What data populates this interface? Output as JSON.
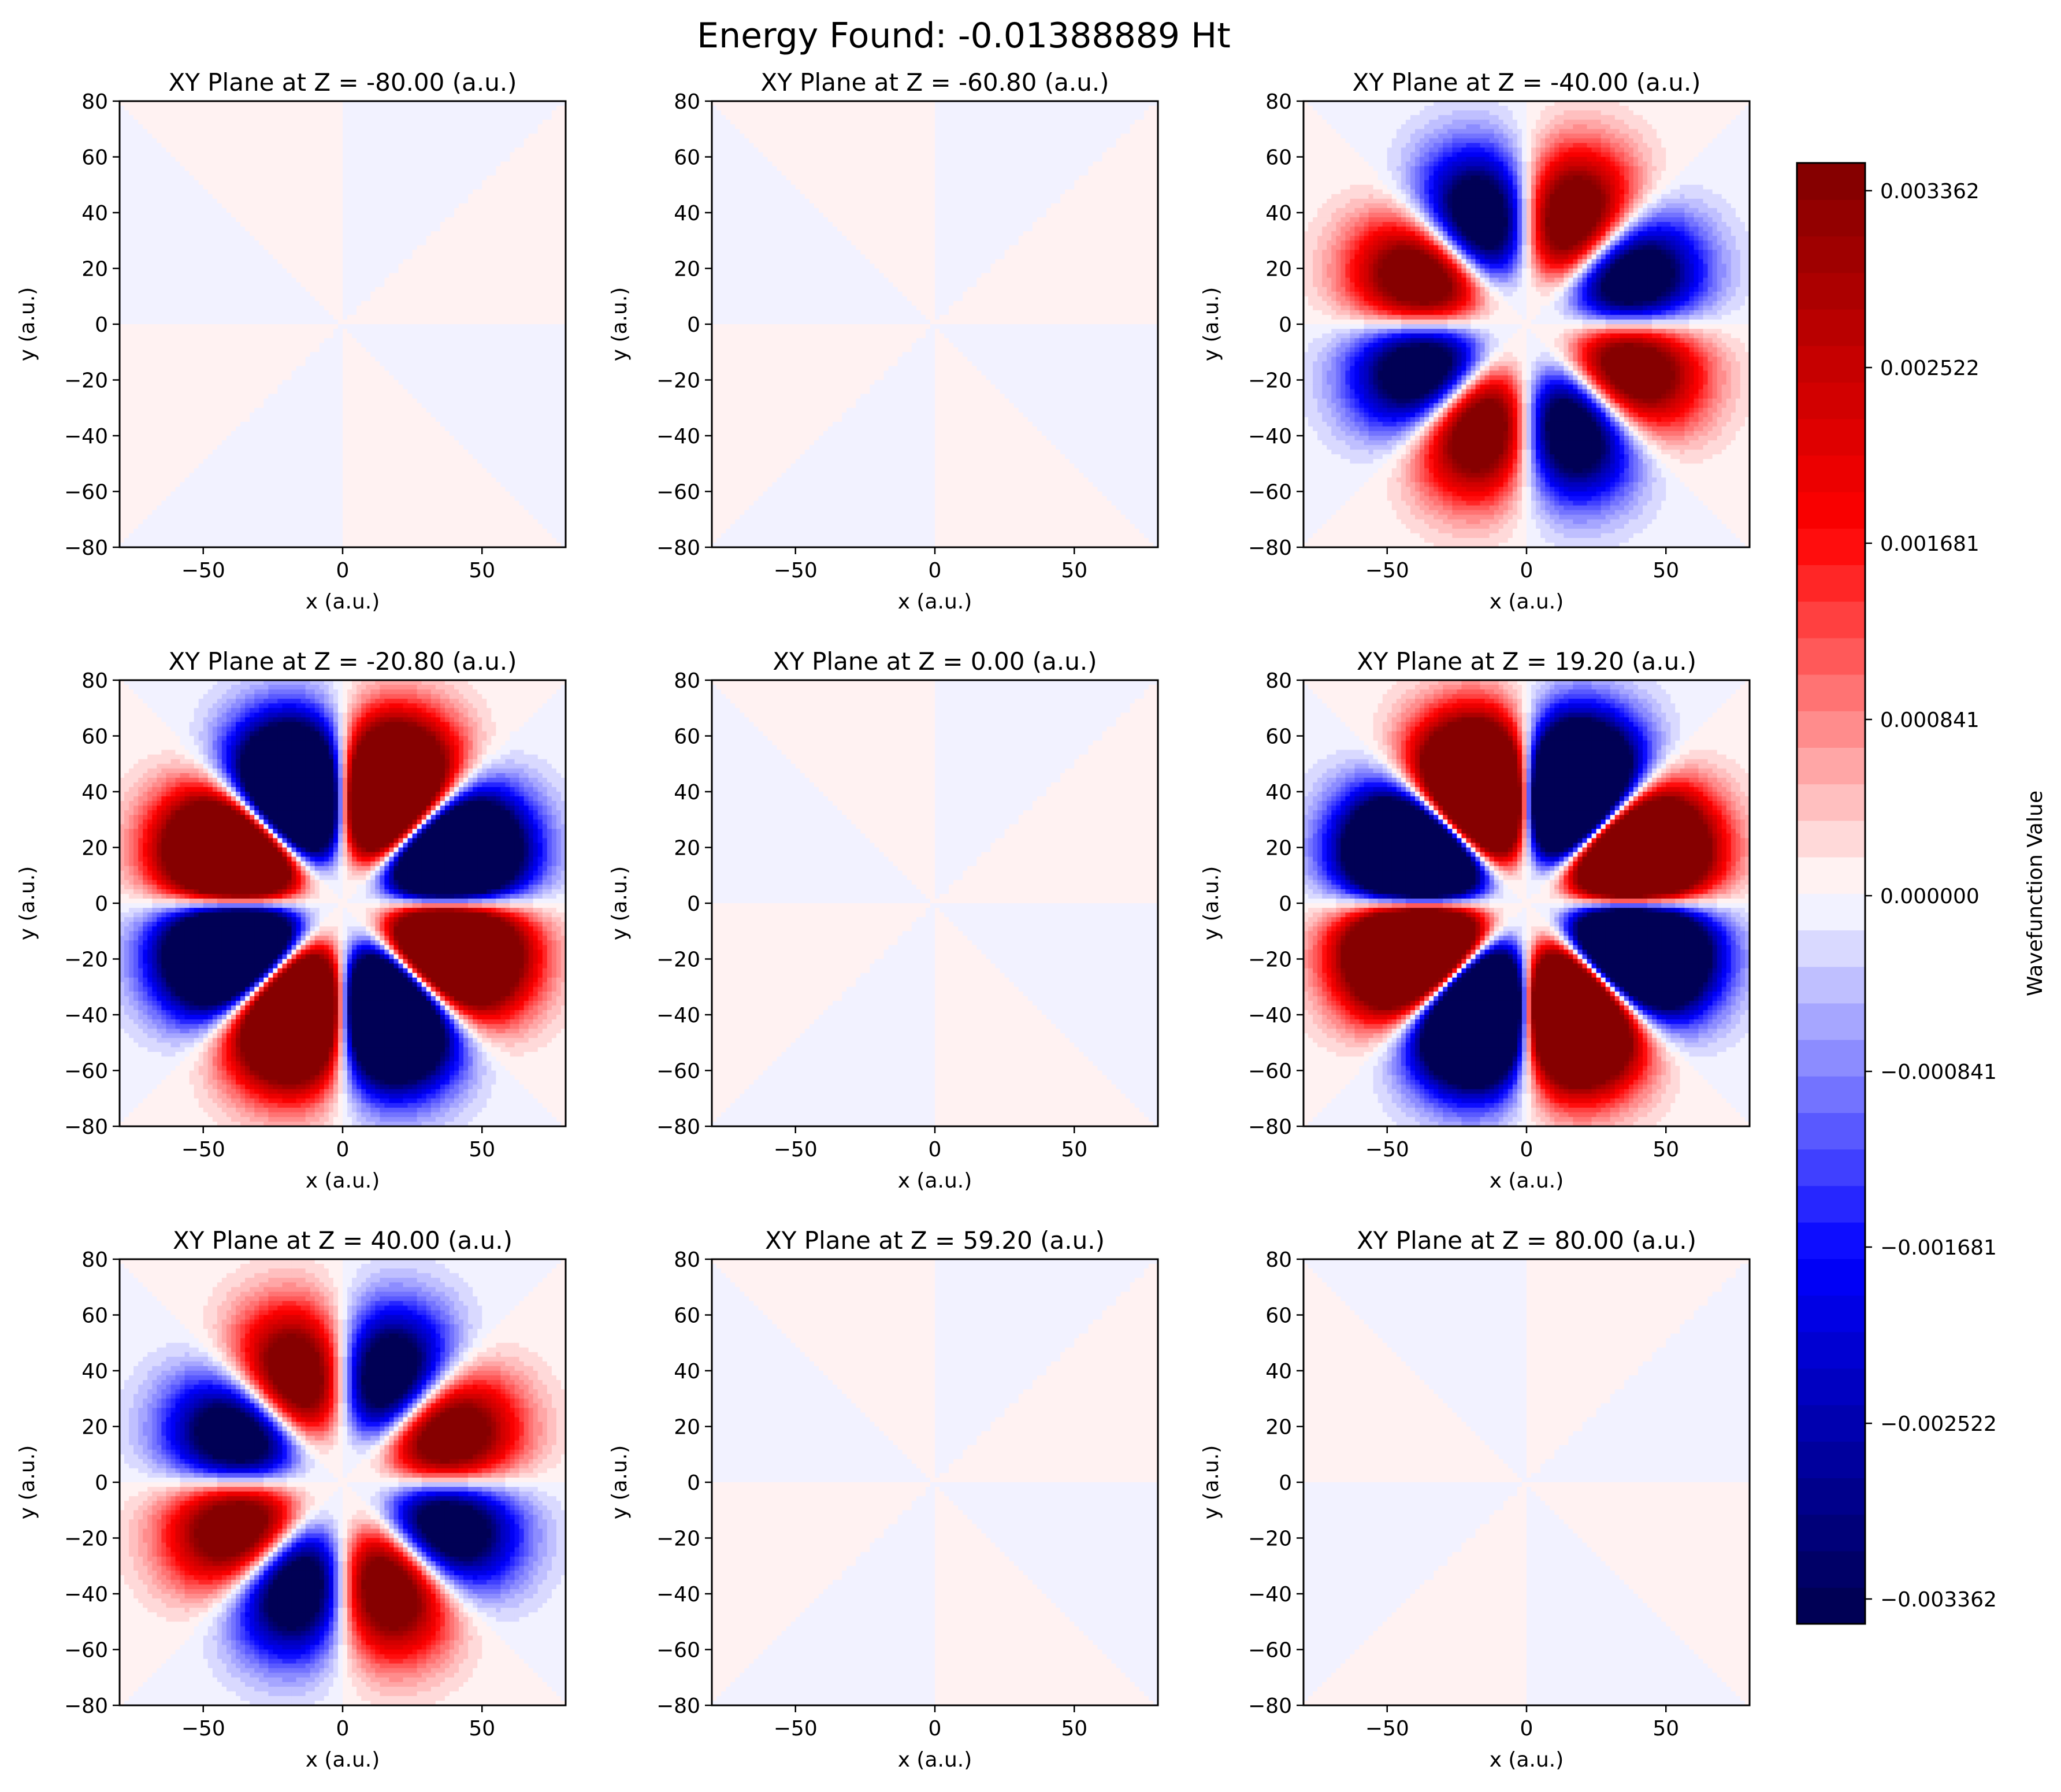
{
  "figure_title": "Energy Found: -0.01388889 Ht",
  "chart_data": {
    "type": "heatmap",
    "suptitle": "Energy Found: -0.01388889 Ht",
    "xlabel": "x (a.u.)",
    "ylabel": "y (a.u.)",
    "xlim": [
      -80,
      80
    ],
    "ylim": [
      -80,
      80
    ],
    "xticks": [
      "−50",
      "0",
      "50"
    ],
    "yticks": [
      "−80",
      "−60",
      "−40",
      "−20",
      "0",
      "20",
      "40",
      "60",
      "80"
    ],
    "panels": [
      {
        "title": "XY Plane at Z = -80.00 (a.u.)",
        "z": -80.0,
        "relative_amplitude": 0.0,
        "sign": 1,
        "lobes": "none"
      },
      {
        "title": "XY Plane at Z = -60.80 (a.u.)",
        "z": -60.8,
        "relative_amplitude": 0.0,
        "sign": 1,
        "lobes": "none"
      },
      {
        "title": "XY Plane at Z = -40.00 (a.u.)",
        "z": -40.0,
        "relative_amplitude": 0.35,
        "sign": -1,
        "lobes": "eight"
      },
      {
        "title": "XY Plane at Z = -20.80 (a.u.)",
        "z": -20.8,
        "relative_amplitude": 0.88,
        "sign": -1,
        "lobes": "eight"
      },
      {
        "title": "XY Plane at Z = 0.00 (a.u.)",
        "z": 0.0,
        "relative_amplitude": 0.0,
        "sign": 1,
        "lobes": "none"
      },
      {
        "title": "XY Plane at Z = 19.20 (a.u.)",
        "z": 19.2,
        "relative_amplitude": 1.0,
        "sign": 1,
        "lobes": "eight"
      },
      {
        "title": "XY Plane at Z = 40.00 (a.u.)",
        "z": 40.0,
        "relative_amplitude": 0.35,
        "sign": 1,
        "lobes": "eight"
      },
      {
        "title": "XY Plane at Z = 59.20 (a.u.)",
        "z": 59.2,
        "relative_amplitude": 0.0,
        "sign": 1,
        "lobes": "none"
      },
      {
        "title": "XY Plane at Z = 80.00 (a.u.)",
        "z": 80.0,
        "relative_amplitude": 0.0,
        "sign": -1,
        "lobes": "none"
      }
    ],
    "colorbar": {
      "label": "Wavefunction Value",
      "colormap": "seismic",
      "range": [
        -0.003362,
        0.003362
      ],
      "ticks": [
        "0.003362",
        "0.002522",
        "0.001681",
        "0.000841",
        "0.000000",
        "−0.000841",
        "−0.001681",
        "−0.002522",
        "−0.003362"
      ],
      "levels": 40
    },
    "colors": {
      "positive": "#ff0000",
      "negative": "#0000ff",
      "dark_positive": "#800000",
      "dark_negative": "#00004d",
      "zero": "#ffffff"
    }
  }
}
